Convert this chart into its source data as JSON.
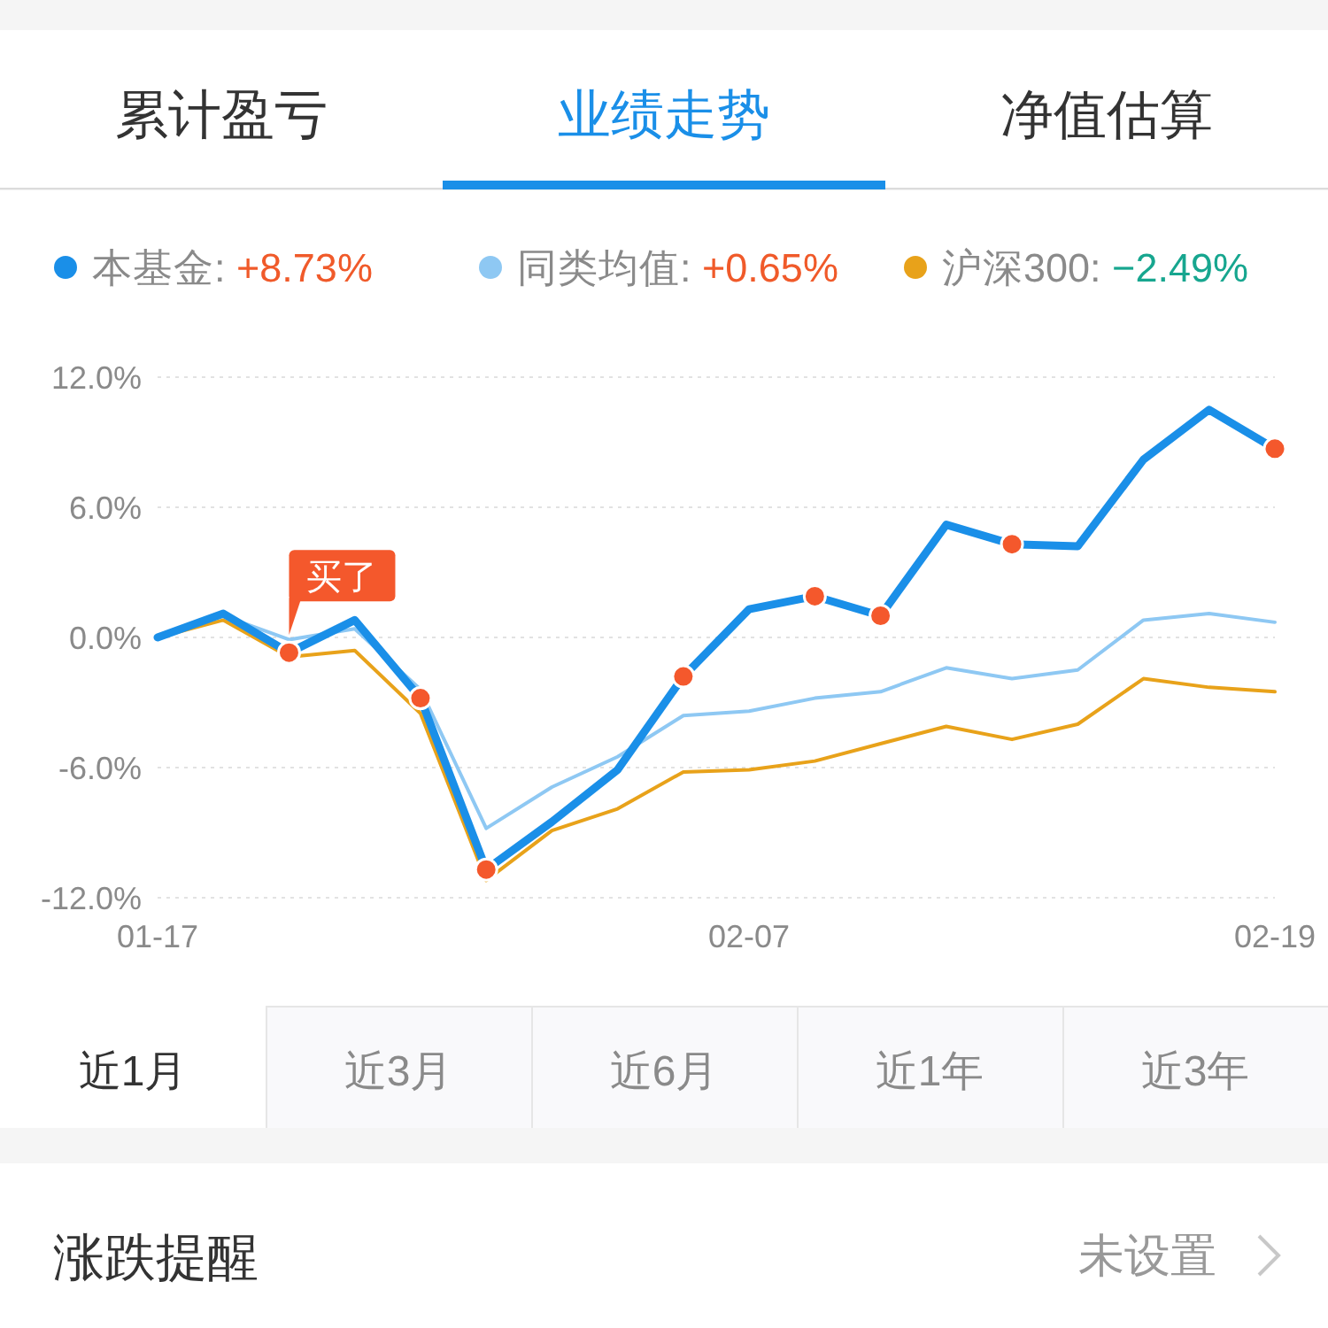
{
  "chart_data": {
    "type": "line",
    "categories": [
      "01-17",
      null,
      null,
      null,
      null,
      null,
      null,
      null,
      null,
      "02-07",
      null,
      null,
      null,
      null,
      null,
      null,
      null,
      "02-19"
    ],
    "series": [
      {
        "name": "本基金: +8.73%",
        "color": "#1a8fe8",
        "values": [
          0,
          1.1,
          -0.7,
          0.8,
          -2.8,
          -10.7,
          -8.5,
          -6.1,
          -1.8,
          1.3,
          1.9,
          1.0,
          5.2,
          4.3,
          4.2,
          8.2,
          10.5,
          8.7
        ]
      },
      {
        "name": "同类均值: +0.65%",
        "color": "#8ec8f3",
        "values": [
          0,
          1.0,
          -0.1,
          0.4,
          -2.4,
          -8.8,
          -6.9,
          -5.5,
          -3.6,
          -3.4,
          -2.8,
          -2.5,
          -1.4,
          -1.9,
          -1.5,
          0.8,
          1.1,
          0.7
        ]
      },
      {
        "name": "沪深300: −2.49%",
        "color": "#e8a21a",
        "values": [
          0,
          0.8,
          -0.9,
          -0.6,
          -3.5,
          -11.2,
          -8.9,
          -7.9,
          -6.2,
          -6.1,
          -5.7,
          -4.9,
          -4.1,
          -4.7,
          -4.0,
          -1.9,
          -2.3,
          -2.5
        ]
      },
      {
        "type": "scatter",
        "color": "#f4582c",
        "marker": "circle",
        "values": [
          null,
          null,
          -0.7,
          null,
          -2.8,
          -10.7,
          null,
          null,
          -1.8,
          null,
          1.9,
          1.0,
          null,
          4.3,
          null,
          null,
          null,
          8.7
        ]
      }
    ],
    "ylim": [
      -12,
      12
    ],
    "yticks": [
      {
        "value": 12,
        "label": "12.0%"
      },
      {
        "value": 6,
        "label": "6.0%"
      },
      {
        "value": 0,
        "label": "0.0%"
      },
      {
        "value": -6,
        "label": "-6.0%"
      },
      {
        "value": -12,
        "label": "-12.0%"
      }
    ],
    "grid": "y",
    "legend": "top",
    "annotations": [
      "累计盈亏",
      "业绩走势",
      "净值估算",
      "近1月",
      "近3月",
      "近6月",
      "近1年",
      "近3年",
      "涨跌提醒",
      "未设置",
      {
        "text": "买了",
        "y": -0.7
      }
    ]
  }
}
